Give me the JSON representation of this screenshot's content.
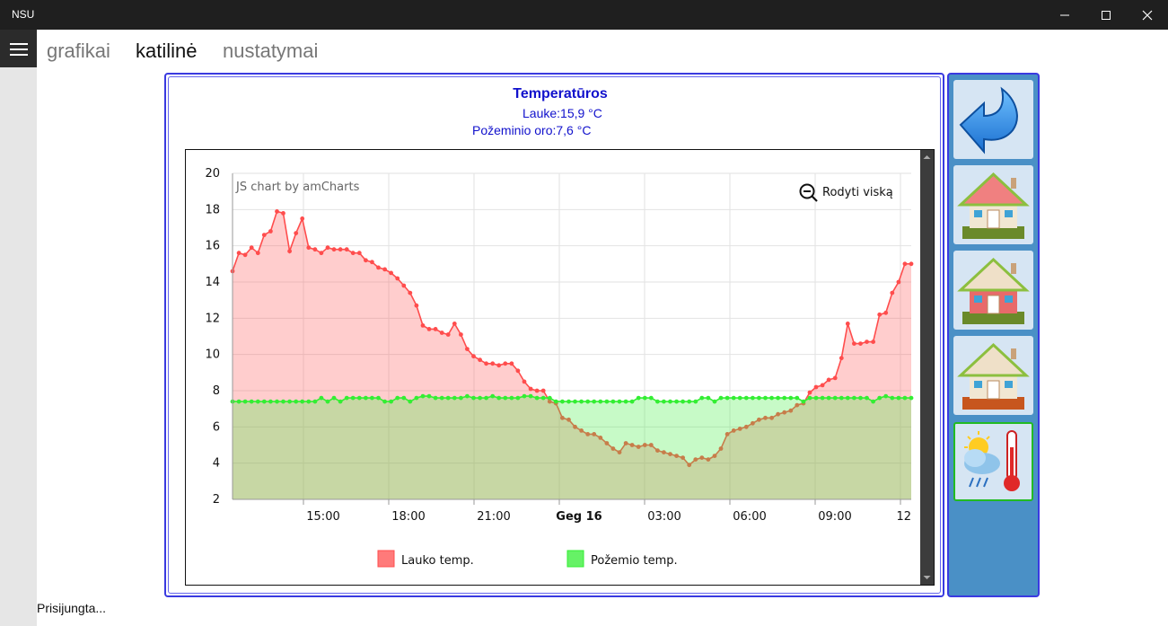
{
  "window": {
    "title": "NSU"
  },
  "nav": {
    "tabs": [
      "grafikai",
      "katilinė",
      "nustatymai"
    ],
    "active": 1
  },
  "panel": {
    "title": "Temperatūros",
    "outside_line": "Lauke:15,9 °C",
    "underground_line": "Požeminio oro:7,6 °C"
  },
  "chart_data": {
    "type": "area",
    "credit": "JS chart by amCharts",
    "zoom_label": "Rodyti viską",
    "ylim": [
      2,
      20
    ],
    "y_ticks": [
      2,
      4,
      6,
      8,
      10,
      12,
      14,
      16,
      18,
      20
    ],
    "x_ticks": [
      "15:00",
      "18:00",
      "21:00",
      "Geg 16",
      "03:00",
      "06:00",
      "09:00",
      "12"
    ],
    "series": [
      {
        "name": "Lauko temp.",
        "color": "#ff4d4d",
        "values": [
          14.6,
          15.6,
          15.5,
          15.9,
          15.6,
          16.6,
          16.8,
          17.9,
          17.8,
          15.7,
          16.7,
          17.5,
          15.9,
          15.8,
          15.6,
          15.9,
          15.8,
          15.8,
          15.8,
          15.6,
          15.6,
          15.2,
          15.1,
          14.8,
          14.7,
          14.5,
          14.2,
          13.8,
          13.4,
          12.7,
          11.6,
          11.4,
          11.4,
          11.2,
          11.1,
          11.7,
          11.1,
          10.3,
          9.9,
          9.7,
          9.5,
          9.5,
          9.4,
          9.5,
          9.5,
          9.1,
          8.5,
          8.1,
          8.0,
          8.0,
          7.4,
          7.3,
          6.5,
          6.4,
          6.0,
          5.8,
          5.6,
          5.6,
          5.4,
          5.1,
          4.8,
          4.6,
          5.1,
          5.0,
          4.9,
          5.0,
          5.0,
          4.7,
          4.6,
          4.5,
          4.4,
          4.3,
          3.9,
          4.2,
          4.3,
          4.2,
          4.4,
          4.8,
          5.6,
          5.8,
          5.9,
          6.0,
          6.2,
          6.4,
          6.5,
          6.5,
          6.7,
          6.8,
          6.9,
          7.2,
          7.3,
          7.9,
          8.2,
          8.3,
          8.6,
          8.7,
          9.8,
          11.7,
          10.6,
          10.6,
          10.7,
          10.7,
          12.2,
          12.3,
          13.4,
          14.0,
          15.0,
          15.0
        ]
      },
      {
        "name": "Požemio temp.",
        "color": "#33ee33",
        "values": [
          7.4,
          7.4,
          7.4,
          7.4,
          7.4,
          7.4,
          7.4,
          7.4,
          7.4,
          7.4,
          7.4,
          7.4,
          7.4,
          7.4,
          7.6,
          7.4,
          7.6,
          7.4,
          7.6,
          7.6,
          7.6,
          7.6,
          7.6,
          7.6,
          7.4,
          7.4,
          7.6,
          7.6,
          7.4,
          7.6,
          7.7,
          7.7,
          7.6,
          7.6,
          7.6,
          7.6,
          7.6,
          7.7,
          7.6,
          7.6,
          7.6,
          7.7,
          7.6,
          7.6,
          7.6,
          7.6,
          7.7,
          7.7,
          7.6,
          7.6,
          7.6,
          7.4,
          7.4,
          7.4,
          7.4,
          7.4,
          7.4,
          7.4,
          7.4,
          7.4,
          7.4,
          7.4,
          7.4,
          7.4,
          7.6,
          7.6,
          7.6,
          7.4,
          7.4,
          7.4,
          7.4,
          7.4,
          7.4,
          7.4,
          7.6,
          7.6,
          7.4,
          7.6,
          7.6,
          7.6,
          7.6,
          7.6,
          7.6,
          7.6,
          7.6,
          7.6,
          7.6,
          7.6,
          7.6,
          7.6,
          7.4,
          7.6,
          7.6,
          7.6,
          7.6,
          7.6,
          7.6,
          7.6,
          7.6,
          7.6,
          7.6,
          7.4,
          7.6,
          7.7,
          7.6,
          7.6,
          7.6,
          7.6
        ]
      }
    ]
  },
  "sidebar": {
    "buttons": [
      {
        "icon": "back-arrow-icon"
      },
      {
        "icon": "house-roof-icon"
      },
      {
        "icon": "house-floor-icon"
      },
      {
        "icon": "house-basement-icon"
      },
      {
        "icon": "weather-thermometer-icon",
        "active": true
      }
    ]
  },
  "status": {
    "text": "Prisijungta..."
  }
}
